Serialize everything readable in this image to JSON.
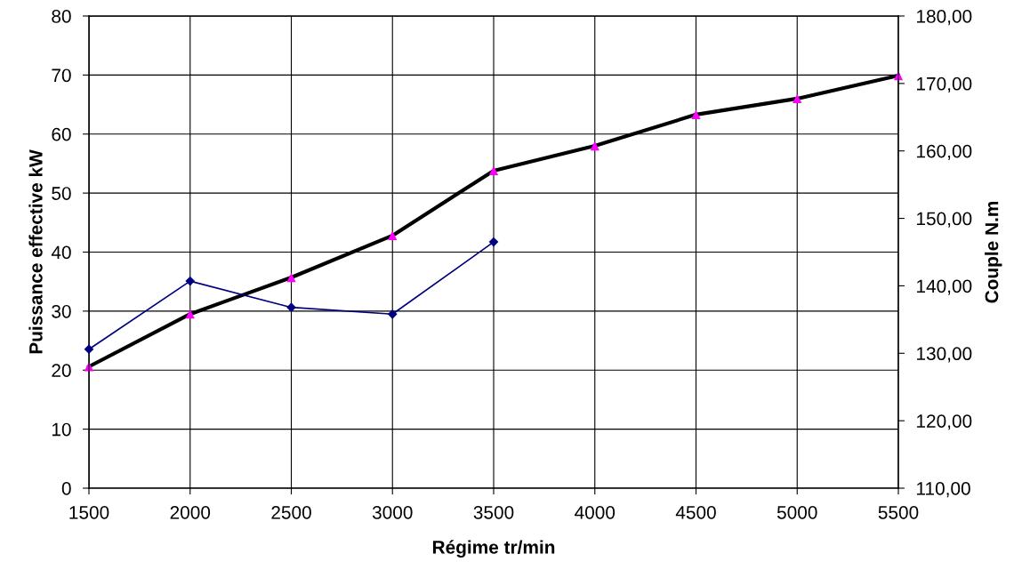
{
  "chart_data": {
    "type": "line",
    "xlabel": "Régime tr/min",
    "ylabel": "Puissance effective kW",
    "y2label": "Couple N.m",
    "x": [
      1500,
      2000,
      2500,
      3000,
      3500,
      4000,
      4500,
      5000,
      5500
    ],
    "series": [
      {
        "color": "#000000",
        "marker": "triangle",
        "colors": [
          "#ff00ff",
          "#ff00ff",
          "#ff00ff",
          "#ff00ff",
          "#ff00ff",
          "#ff00ff",
          "#ff00ff",
          "#ff00ff",
          "#ff00ff"
        ],
        "values": [
          20.6,
          29.5,
          35.7,
          42.8,
          53.8,
          58.0,
          63.3,
          66.0,
          69.9
        ]
      },
      {
        "color": "#000080",
        "marker": "diamond",
        "axis": "y2",
        "x": [
          1500,
          2000,
          2500,
          3000,
          3500
        ],
        "values": [
          130.6,
          140.7,
          136.8,
          135.8,
          146.5
        ]
      }
    ],
    "xlim": [
      1500,
      5500
    ],
    "xticks": [
      1500,
      2000,
      2500,
      3000,
      3500,
      4000,
      4500,
      5000,
      5500
    ],
    "ylim": [
      0,
      80
    ],
    "yticks": [
      0,
      10,
      20,
      30,
      40,
      50,
      60,
      70,
      80
    ],
    "y2lim": [
      110,
      180
    ],
    "y2ticks": [
      {
        "value": 110,
        "label": "110,00"
      },
      {
        "value": 120,
        "label": "120,00"
      },
      {
        "value": 130,
        "label": "130,00"
      },
      {
        "value": 140,
        "label": "140,00"
      },
      {
        "value": 150,
        "label": "150,00"
      },
      {
        "value": 160,
        "label": "160,00"
      },
      {
        "value": 170,
        "label": "170,00"
      },
      {
        "value": 180,
        "label": "180,00"
      }
    ],
    "grid": true,
    "legend": false
  }
}
